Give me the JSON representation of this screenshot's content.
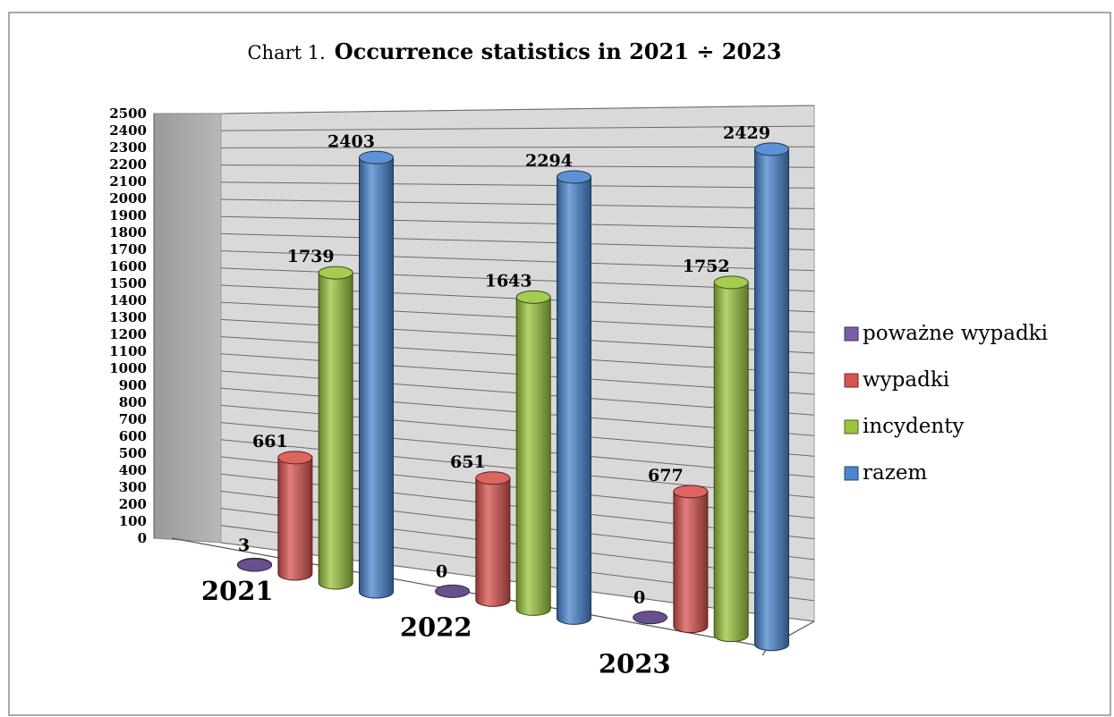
{
  "chart_data": {
    "type": "bar",
    "title_prefix": "Chart 1.",
    "title": "Occurrence statistics in 2021 ÷ 2023",
    "categories": [
      "2021",
      "2022",
      "2023"
    ],
    "series": [
      {
        "name": "poważne wypadki",
        "values": [
          3,
          0,
          0
        ],
        "color": "#7a5ea8"
      },
      {
        "name": "wypadki",
        "values": [
          661,
          651,
          677
        ],
        "color": "#d9534f"
      },
      {
        "name": "incydenty",
        "values": [
          1739,
          1643,
          1752
        ],
        "color": "#9bc53d"
      },
      {
        "name": "razem",
        "values": [
          2403,
          2294,
          2429
        ],
        "color": "#4a86d0"
      }
    ],
    "ylim": [
      0,
      2500
    ],
    "ytick_step": 100,
    "grid": true,
    "legend_position": "right",
    "style": "3d-cylinder"
  }
}
